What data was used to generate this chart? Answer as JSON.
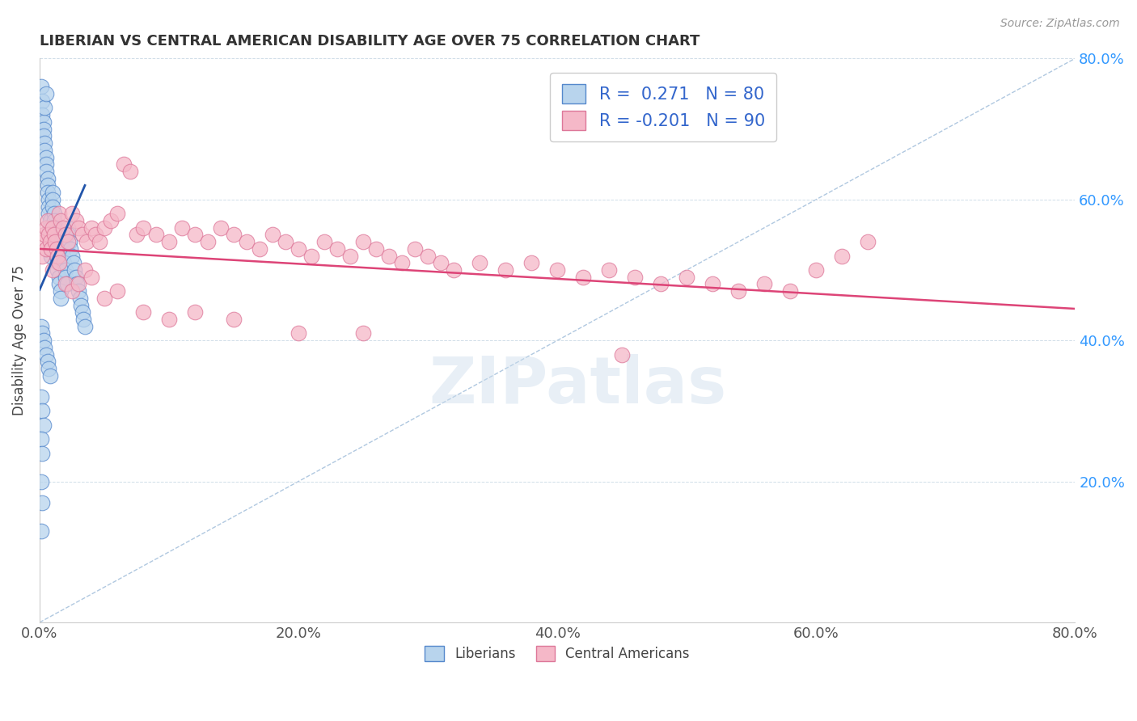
{
  "title": "LIBERIAN VS CENTRAL AMERICAN DISABILITY AGE OVER 75 CORRELATION CHART",
  "source": "Source: ZipAtlas.com",
  "ylabel": "Disability Age Over 75",
  "xlim": [
    0.0,
    0.8
  ],
  "ylim": [
    0.0,
    0.8
  ],
  "xticks": [
    0.0,
    0.2,
    0.4,
    0.6,
    0.8
  ],
  "yticks": [
    0.0,
    0.2,
    0.4,
    0.6,
    0.8
  ],
  "xtick_labels": [
    "0.0%",
    "20.0%",
    "40.0%",
    "60.0%",
    "80.0%"
  ],
  "ytick_right_labels": [
    "",
    "20.0%",
    "40.0%",
    "60.0%",
    "80.0%"
  ],
  "liberian_color": "#b8d4ed",
  "liberian_edge": "#5588cc",
  "central_american_color": "#f5b8c8",
  "central_american_edge": "#dd7799",
  "liberian_R": 0.271,
  "liberian_N": 80,
  "central_american_R": -0.201,
  "central_american_N": 90,
  "liberian_line_color": "#2255aa",
  "central_american_line_color": "#dd4477",
  "diagonal_color": "#b0c8e0",
  "watermark": "ZIPatlas",
  "background_color": "#ffffff",
  "legend_color": "#3366cc",
  "liberian_scatter_x": [
    0.001,
    0.002,
    0.002,
    0.003,
    0.003,
    0.003,
    0.004,
    0.004,
    0.004,
    0.005,
    0.005,
    0.005,
    0.005,
    0.006,
    0.006,
    0.006,
    0.007,
    0.007,
    0.007,
    0.008,
    0.008,
    0.008,
    0.009,
    0.009,
    0.009,
    0.01,
    0.01,
    0.01,
    0.011,
    0.011,
    0.011,
    0.012,
    0.012,
    0.013,
    0.013,
    0.014,
    0.014,
    0.015,
    0.015,
    0.016,
    0.016,
    0.017,
    0.017,
    0.018,
    0.018,
    0.019,
    0.02,
    0.02,
    0.021,
    0.022,
    0.022,
    0.023,
    0.024,
    0.025,
    0.026,
    0.027,
    0.028,
    0.029,
    0.03,
    0.031,
    0.032,
    0.033,
    0.034,
    0.035,
    0.001,
    0.002,
    0.003,
    0.004,
    0.005,
    0.006,
    0.007,
    0.008,
    0.001,
    0.002,
    0.003,
    0.001,
    0.002,
    0.001,
    0.002,
    0.001
  ],
  "liberian_scatter_y": [
    0.76,
    0.74,
    0.72,
    0.71,
    0.7,
    0.69,
    0.68,
    0.67,
    0.73,
    0.66,
    0.65,
    0.64,
    0.75,
    0.63,
    0.62,
    0.61,
    0.6,
    0.59,
    0.58,
    0.57,
    0.56,
    0.55,
    0.54,
    0.53,
    0.52,
    0.61,
    0.6,
    0.59,
    0.58,
    0.57,
    0.56,
    0.55,
    0.54,
    0.53,
    0.52,
    0.51,
    0.5,
    0.49,
    0.48,
    0.47,
    0.46,
    0.55,
    0.54,
    0.53,
    0.52,
    0.51,
    0.5,
    0.49,
    0.48,
    0.56,
    0.55,
    0.54,
    0.53,
    0.52,
    0.51,
    0.5,
    0.49,
    0.48,
    0.47,
    0.46,
    0.45,
    0.44,
    0.43,
    0.42,
    0.42,
    0.41,
    0.4,
    0.39,
    0.38,
    0.37,
    0.36,
    0.35,
    0.32,
    0.3,
    0.28,
    0.26,
    0.24,
    0.2,
    0.17,
    0.13
  ],
  "central_american_scatter_x": [
    0.002,
    0.003,
    0.004,
    0.005,
    0.005,
    0.006,
    0.007,
    0.008,
    0.009,
    0.01,
    0.011,
    0.012,
    0.013,
    0.014,
    0.015,
    0.016,
    0.018,
    0.02,
    0.022,
    0.025,
    0.028,
    0.03,
    0.033,
    0.036,
    0.04,
    0.043,
    0.046,
    0.05,
    0.055,
    0.06,
    0.065,
    0.07,
    0.075,
    0.08,
    0.09,
    0.1,
    0.11,
    0.12,
    0.13,
    0.14,
    0.15,
    0.16,
    0.17,
    0.18,
    0.19,
    0.2,
    0.21,
    0.22,
    0.23,
    0.24,
    0.25,
    0.26,
    0.27,
    0.28,
    0.29,
    0.3,
    0.31,
    0.32,
    0.34,
    0.36,
    0.38,
    0.4,
    0.42,
    0.44,
    0.46,
    0.48,
    0.5,
    0.52,
    0.54,
    0.56,
    0.58,
    0.6,
    0.62,
    0.64,
    0.01,
    0.015,
    0.02,
    0.025,
    0.03,
    0.035,
    0.04,
    0.05,
    0.06,
    0.08,
    0.1,
    0.12,
    0.15,
    0.2,
    0.25,
    0.45
  ],
  "central_american_scatter_y": [
    0.52,
    0.54,
    0.55,
    0.53,
    0.56,
    0.57,
    0.55,
    0.54,
    0.53,
    0.56,
    0.55,
    0.54,
    0.53,
    0.52,
    0.58,
    0.57,
    0.56,
    0.55,
    0.54,
    0.58,
    0.57,
    0.56,
    0.55,
    0.54,
    0.56,
    0.55,
    0.54,
    0.56,
    0.57,
    0.58,
    0.65,
    0.64,
    0.55,
    0.56,
    0.55,
    0.54,
    0.56,
    0.55,
    0.54,
    0.56,
    0.55,
    0.54,
    0.53,
    0.55,
    0.54,
    0.53,
    0.52,
    0.54,
    0.53,
    0.52,
    0.54,
    0.53,
    0.52,
    0.51,
    0.53,
    0.52,
    0.51,
    0.5,
    0.51,
    0.5,
    0.51,
    0.5,
    0.49,
    0.5,
    0.49,
    0.48,
    0.49,
    0.48,
    0.47,
    0.48,
    0.47,
    0.5,
    0.52,
    0.54,
    0.5,
    0.51,
    0.48,
    0.47,
    0.48,
    0.5,
    0.49,
    0.46,
    0.47,
    0.44,
    0.43,
    0.44,
    0.43,
    0.41,
    0.41,
    0.38
  ],
  "liberian_trend_x": [
    0.0,
    0.035
  ],
  "liberian_trend_y": [
    0.472,
    0.62
  ],
  "central_american_trend_x": [
    0.0,
    0.8
  ],
  "central_american_trend_y": [
    0.53,
    0.445
  ]
}
